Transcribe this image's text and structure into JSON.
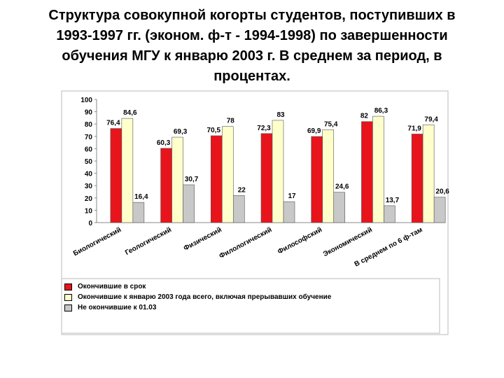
{
  "chart_data": {
    "type": "bar",
    "title": "Структура совокупной когорты студентов, поступивших в 1993-1997 гг. (эконом. ф-т - 1994-1998) по завершенности обучения МГУ к январю 2003 г. В среднем за период, в процентах.",
    "categories": [
      "Биологический",
      "Геологический",
      "Физический",
      "Филологический",
      "Философский",
      "Экономический",
      "В среднем по 6 ф-там"
    ],
    "series": [
      {
        "name": "Окончившие в срок",
        "color": "#e8141c",
        "values": [
          76.4,
          60.3,
          70.5,
          72.3,
          69.9,
          82,
          71.9
        ],
        "value_labels": [
          "76,4",
          "60,3",
          "70,5",
          "72,3",
          "69,9",
          "82",
          "71,9"
        ]
      },
      {
        "name": "Окончившие к январю 2003 года всего, включая прерывавших обучение",
        "color": "#ffffcc",
        "values": [
          84.6,
          69.3,
          78,
          83,
          75.4,
          86.3,
          79.4
        ],
        "value_labels": [
          "84,6",
          "69,3",
          "78",
          "83",
          "75,4",
          "86,3",
          "79,4"
        ]
      },
      {
        "name": "Не окончившие к 01.03",
        "color": "#c8c8c8",
        "values": [
          16.4,
          30.7,
          22,
          17,
          24.6,
          13.7,
          20.6
        ],
        "value_labels": [
          "16,4",
          "30,7",
          "22",
          "17",
          "24,6",
          "13,7",
          "20,6"
        ]
      }
    ],
    "ylim": [
      0,
      100
    ],
    "yticks": [
      0,
      10,
      20,
      30,
      40,
      50,
      60,
      70,
      80,
      90,
      100
    ],
    "grid": false
  }
}
